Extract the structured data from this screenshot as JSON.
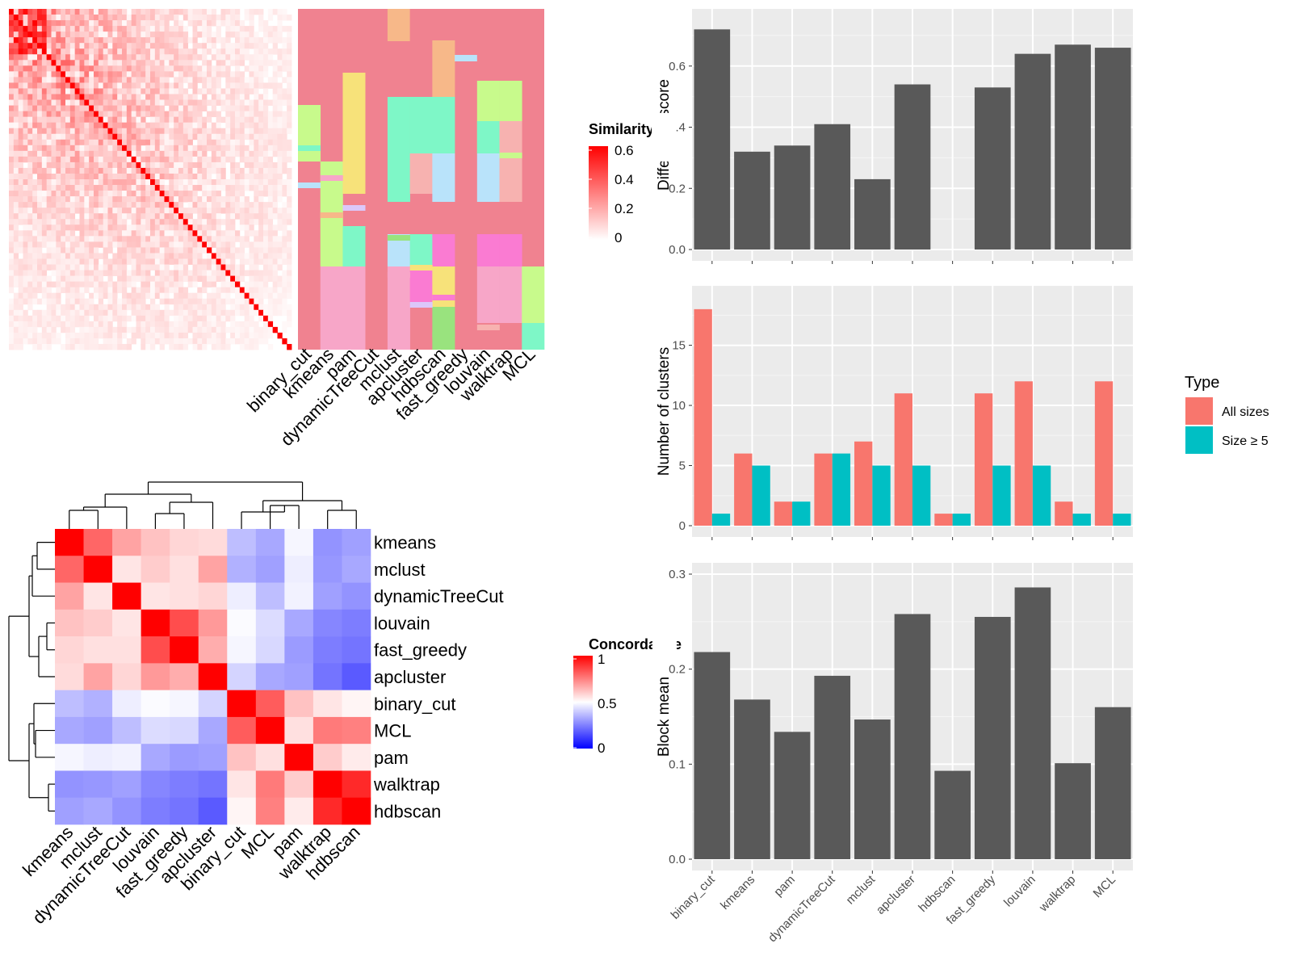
{
  "colors": {
    "panel_bg": "#ebebeb",
    "bar_gray": "#595959",
    "all_sizes": "#f8766d",
    "size_ge5": "#00bfc4"
  },
  "similarity_heatmap": {
    "legend_title": "Similarity",
    "legend_ticks": [
      "0.6",
      "0.4",
      "0.2",
      "0"
    ],
    "method_labels": [
      "binary_cut",
      "kmeans",
      "pam",
      "dynamicTreeCut",
      "mclust",
      "apcluster",
      "hdbscan",
      "fast_greedy",
      "louvain",
      "walktrap",
      "MCL"
    ]
  },
  "concordance_heatmap": {
    "legend_title": "Concordance",
    "legend_ticks": [
      "1",
      "0.5",
      "0"
    ],
    "labels": [
      "kmeans",
      "mclust",
      "dynamicTreeCut",
      "louvain",
      "fast_greedy",
      "apcluster",
      "binary_cut",
      "MCL",
      "pam",
      "walktrap",
      "hdbscan"
    ],
    "matrix": [
      [
        1.0,
        0.8,
        0.68,
        0.62,
        0.58,
        0.57,
        0.35,
        0.3,
        0.48,
        0.25,
        0.28
      ],
      [
        0.8,
        1.0,
        0.55,
        0.6,
        0.56,
        0.68,
        0.32,
        0.28,
        0.46,
        0.26,
        0.3
      ],
      [
        0.68,
        0.55,
        1.0,
        0.55,
        0.56,
        0.58,
        0.46,
        0.35,
        0.47,
        0.28,
        0.25
      ],
      [
        0.62,
        0.6,
        0.55,
        1.0,
        0.85,
        0.7,
        0.49,
        0.42,
        0.3,
        0.22,
        0.2
      ],
      [
        0.58,
        0.56,
        0.56,
        0.85,
        1.0,
        0.66,
        0.48,
        0.41,
        0.27,
        0.2,
        0.18
      ],
      [
        0.57,
        0.68,
        0.58,
        0.7,
        0.66,
        1.0,
        0.4,
        0.3,
        0.28,
        0.18,
        0.12
      ],
      [
        0.35,
        0.32,
        0.46,
        0.49,
        0.48,
        0.4,
        1.0,
        0.82,
        0.62,
        0.55,
        0.52
      ],
      [
        0.3,
        0.28,
        0.35,
        0.42,
        0.41,
        0.3,
        0.82,
        1.0,
        0.56,
        0.76,
        0.75
      ],
      [
        0.48,
        0.46,
        0.47,
        0.3,
        0.27,
        0.28,
        0.62,
        0.56,
        1.0,
        0.6,
        0.54
      ],
      [
        0.25,
        0.26,
        0.28,
        0.22,
        0.2,
        0.18,
        0.55,
        0.76,
        0.6,
        1.0,
        0.92
      ],
      [
        0.28,
        0.3,
        0.25,
        0.2,
        0.18,
        0.12,
        0.52,
        0.75,
        0.54,
        0.92,
        1.0
      ]
    ]
  },
  "chart_data": [
    {
      "type": "bar",
      "ylabel": "Difference score",
      "categories": [
        "binary_cut",
        "kmeans",
        "pam",
        "dynamicTreeCut",
        "mclust",
        "apcluster",
        "hdbscan",
        "fast_greedy",
        "louvain",
        "walktrap",
        "MCL"
      ],
      "values": [
        0.72,
        0.32,
        0.34,
        0.41,
        0.23,
        0.54,
        0,
        0.53,
        0.64,
        0.67,
        0.66
      ],
      "ylim": [
        0,
        0.75
      ],
      "yticks": [
        0.0,
        0.2,
        0.4,
        0.6
      ],
      "ytick_labels": [
        "0.0",
        "0.2",
        "0.4",
        "0.6"
      ],
      "grid": true
    },
    {
      "type": "bar",
      "ylabel": "Number of clusters",
      "categories": [
        "binary_cut",
        "kmeans",
        "pam",
        "dynamicTreeCut",
        "mclust",
        "apcluster",
        "hdbscan",
        "fast_greedy",
        "louvain",
        "walktrap",
        "MCL"
      ],
      "series": [
        {
          "name": "All sizes",
          "values": [
            18,
            6,
            2,
            6,
            7,
            11,
            1,
            11,
            12,
            2,
            12
          ]
        },
        {
          "name": "Size ≥ 5",
          "values": [
            1,
            5,
            2,
            6,
            5,
            5,
            1,
            5,
            5,
            1,
            1
          ]
        }
      ],
      "legend_title": "Type",
      "legend_position": "right",
      "ylim": [
        0,
        19
      ],
      "yticks": [
        0,
        5,
        10,
        15
      ],
      "ytick_labels": [
        "0",
        "5",
        "10",
        "15"
      ],
      "grid": true
    },
    {
      "type": "bar",
      "ylabel": "Block mean",
      "categories": [
        "binary_cut",
        "kmeans",
        "pam",
        "dynamicTreeCut",
        "mclust",
        "apcluster",
        "hdbscan",
        "fast_greedy",
        "louvain",
        "walktrap",
        "MCL"
      ],
      "values": [
        0.218,
        0.168,
        0.134,
        0.193,
        0.147,
        0.258,
        0.093,
        0.255,
        0.286,
        0.101,
        0.16
      ],
      "ylim": [
        0,
        0.3
      ],
      "yticks": [
        0.0,
        0.1,
        0.2,
        0.3
      ],
      "ytick_labels": [
        "0.0",
        "0.1",
        "0.2",
        "0.3"
      ],
      "grid": true
    }
  ]
}
